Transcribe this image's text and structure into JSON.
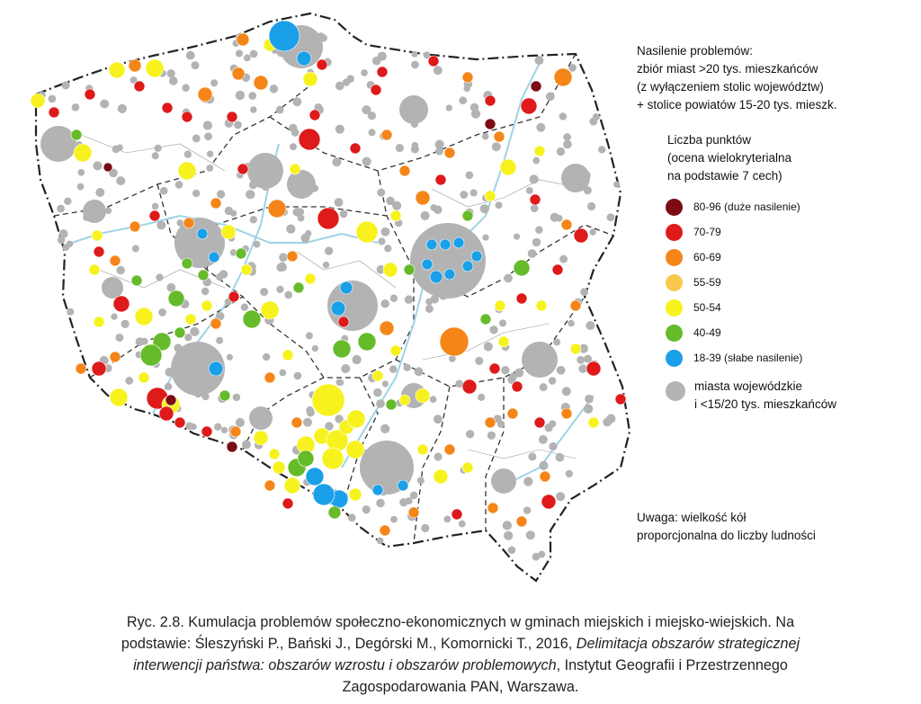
{
  "legend": {
    "title_lines": [
      "Nasilenie problemów:",
      "zbiór miast >20 tys. mieszkańców",
      "(z wyłączeniem stolic województw)",
      "+ stolice powiatów 15-20 tys. mieszk."
    ],
    "subtitle_lines": [
      "Liczba punktów",
      "(ocena wielokryterialna",
      "na podstawie 7 cech)"
    ],
    "classes": [
      {
        "label": "80-96 (duże nasilenie)",
        "color": "#7b0c14"
      },
      {
        "label": "70-79",
        "color": "#de1a1a"
      },
      {
        "label": "60-69",
        "color": "#f58518"
      },
      {
        "label": "55-59",
        "color": "#f9c94f"
      },
      {
        "label": "50-54",
        "color": "#f7f21e"
      },
      {
        "label": "40-49",
        "color": "#66bb2a"
      },
      {
        "label": "18-39 (słabe nasilenie)",
        "color": "#1aa0e8"
      }
    ],
    "other_lines": [
      "miasta wojewódzkie",
      "i <15/20 tys. mieszkańców"
    ],
    "other_color": "#b3b3b3"
  },
  "note_lines": [
    "Uwaga: wielkość kół",
    "proporcjonalna do liczby ludności"
  ],
  "caption": {
    "line1": "Ryc. 2.8. Kumulacja problemów społeczno-ekonomicznych w gminach miejskich i miejsko-wiejskich. Na",
    "line2_a": "podstawie: Śleszyński P., Bański J., Degórski M., Komornicki T., 2016, ",
    "line2_b": "Delimitacja obszarów strategicznej",
    "line3_a": "interwencji państwa: obszarów wzrostu i obszarów problemowych",
    "line3_b": ", Instytut Geografii i Przestrzennego",
    "line4": "Zagospodarowania PAN, Warszawa."
  }
}
